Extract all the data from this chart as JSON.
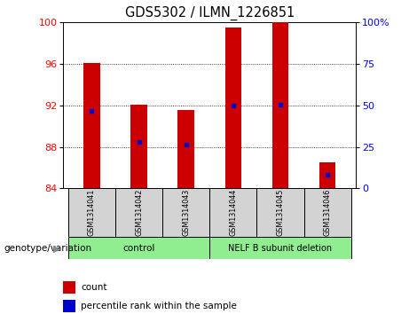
{
  "title": "GDS5302 / ILMN_1226851",
  "samples": [
    "GSM1314041",
    "GSM1314042",
    "GSM1314043",
    "GSM1314044",
    "GSM1314045",
    "GSM1314046"
  ],
  "bar_bottoms": [
    84,
    84,
    84,
    84,
    84,
    84
  ],
  "bar_tops": [
    96.1,
    92.1,
    91.6,
    99.5,
    100.0,
    86.5
  ],
  "percentile_values": [
    91.5,
    88.5,
    88.2,
    92.0,
    92.1,
    85.3
  ],
  "ylim_left": [
    84,
    100
  ],
  "ylim_right": [
    0,
    100
  ],
  "yticks_left": [
    84,
    88,
    92,
    96,
    100
  ],
  "yticks_right": [
    0,
    25,
    50,
    75,
    100
  ],
  "ytick_labels_right": [
    "0",
    "25",
    "50",
    "75",
    "100%"
  ],
  "bar_color": "#cc0000",
  "percentile_color": "#0000cc",
  "bar_width": 0.35,
  "control_label": "control",
  "deletion_label": "NELF B subunit deletion",
  "genotype_label": "genotype/variation",
  "legend_count": "count",
  "legend_percentile": "percentile rank within the sample",
  "control_color": "#90ee90",
  "deletion_color": "#90ee90",
  "sample_bg": "#d3d3d3",
  "title_fontsize": 10.5
}
